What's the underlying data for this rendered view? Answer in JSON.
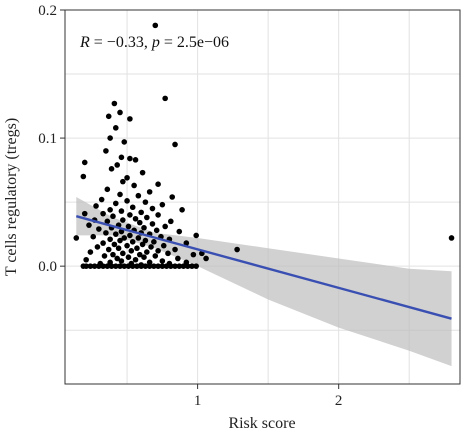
{
  "chart_data": {
    "type": "scatter",
    "title": "",
    "xlabel": "Risk score",
    "ylabel": "T cells regulatory (tregs)",
    "xlim": [
      0.06,
      2.86
    ],
    "ylim": [
      -0.092,
      0.2
    ],
    "x_ticks": [
      1,
      2
    ],
    "x_tick_labels": [
      "1",
      "2"
    ],
    "y_ticks": [
      0.0,
      0.1,
      0.2
    ],
    "y_tick_labels": [
      "0.0",
      "0.1",
      "0.2"
    ],
    "grid": true,
    "annotation": {
      "r_label": "R",
      "r_text": " = −0.33, ",
      "p_label": "p",
      "p_text": " = 2.5e−06"
    },
    "colors": {
      "points": "#000000",
      "fit_line": "#3a4fb2",
      "ci_band": "#bdbdbd",
      "grid": "#e2e2e2",
      "axis": "#333333"
    },
    "fit": {
      "x": [
        0.14,
        2.8
      ],
      "y": [
        0.039,
        -0.041
      ],
      "ci_x": [
        0.14,
        0.4,
        0.7,
        1.0,
        1.5,
        2.0,
        2.5,
        2.8
      ],
      "ci_lower": [
        0.024,
        0.024,
        0.014,
        0.0,
        -0.026,
        -0.048,
        -0.066,
        -0.078
      ],
      "ci_upper": [
        0.054,
        0.038,
        0.026,
        0.022,
        0.014,
        0.006,
        -0.002,
        -0.004
      ]
    },
    "points": [
      [
        0.7,
        0.188
      ],
      [
        0.77,
        0.131
      ],
      [
        0.41,
        0.127
      ],
      [
        0.45,
        0.12
      ],
      [
        0.37,
        0.117
      ],
      [
        0.52,
        0.115
      ],
      [
        0.42,
        0.108
      ],
      [
        0.38,
        0.1
      ],
      [
        0.48,
        0.097
      ],
      [
        0.84,
        0.095
      ],
      [
        0.35,
        0.09
      ],
      [
        0.46,
        0.085
      ],
      [
        0.52,
        0.084
      ],
      [
        0.56,
        0.083
      ],
      [
        0.2,
        0.081
      ],
      [
        0.43,
        0.079
      ],
      [
        0.39,
        0.076
      ],
      [
        0.61,
        0.073
      ],
      [
        0.19,
        0.07
      ],
      [
        0.5,
        0.069
      ],
      [
        0.47,
        0.066
      ],
      [
        0.72,
        0.064
      ],
      [
        0.55,
        0.063
      ],
      [
        0.36,
        0.06
      ],
      [
        0.66,
        0.058
      ],
      [
        0.45,
        0.056
      ],
      [
        0.58,
        0.055
      ],
      [
        0.82,
        0.054
      ],
      [
        0.32,
        0.052
      ],
      [
        0.5,
        0.051
      ],
      [
        0.63,
        0.05
      ],
      [
        0.42,
        0.049
      ],
      [
        0.75,
        0.048
      ],
      [
        0.28,
        0.047
      ],
      [
        0.54,
        0.046
      ],
      [
        0.68,
        0.045
      ],
      [
        0.38,
        0.044
      ],
      [
        0.89,
        0.044
      ],
      [
        0.46,
        0.043
      ],
      [
        0.6,
        0.042
      ],
      [
        0.2,
        0.041
      ],
      [
        0.33,
        0.041
      ],
      [
        0.52,
        0.04
      ],
      [
        0.72,
        0.04
      ],
      [
        0.4,
        0.039
      ],
      [
        0.64,
        0.038
      ],
      [
        0.56,
        0.037
      ],
      [
        0.27,
        0.036
      ],
      [
        0.47,
        0.036
      ],
      [
        0.81,
        0.035
      ],
      [
        0.36,
        0.035
      ],
      [
        0.59,
        0.034
      ],
      [
        0.68,
        0.033
      ],
      [
        0.44,
        0.032
      ],
      [
        0.23,
        0.032
      ],
      [
        0.51,
        0.031
      ],
      [
        0.77,
        0.031
      ],
      [
        0.39,
        0.03
      ],
      [
        0.62,
        0.03
      ],
      [
        0.3,
        0.029
      ],
      [
        0.55,
        0.028
      ],
      [
        0.71,
        0.028
      ],
      [
        0.46,
        0.027
      ],
      [
        0.87,
        0.027
      ],
      [
        0.35,
        0.026
      ],
      [
        0.6,
        0.026
      ],
      [
        0.42,
        0.025
      ],
      [
        0.66,
        0.025
      ],
      [
        0.52,
        0.024
      ],
      [
        0.99,
        0.024
      ],
      [
        0.26,
        0.023
      ],
      [
        0.74,
        0.023
      ],
      [
        0.48,
        0.022
      ],
      [
        0.58,
        0.022
      ],
      [
        0.14,
        0.022
      ],
      [
        0.38,
        0.021
      ],
      [
        0.8,
        0.021
      ],
      [
        0.63,
        0.02
      ],
      [
        0.45,
        0.02
      ],
      [
        0.69,
        0.019
      ],
      [
        0.54,
        0.019
      ],
      [
        0.33,
        0.018
      ],
      [
        0.92,
        0.018
      ],
      [
        0.41,
        0.017
      ],
      [
        0.61,
        0.017
      ],
      [
        0.76,
        0.016
      ],
      [
        0.5,
        0.016
      ],
      [
        0.29,
        0.015
      ],
      [
        0.67,
        0.015
      ],
      [
        0.44,
        0.014
      ],
      [
        0.57,
        0.014
      ],
      [
        0.84,
        0.013
      ],
      [
        0.37,
        0.013
      ],
      [
        0.72,
        0.012
      ],
      [
        0.53,
        0.012
      ],
      [
        1.28,
        0.013
      ],
      [
        0.24,
        0.011
      ],
      [
        0.64,
        0.011
      ],
      [
        0.47,
        0.01
      ],
      [
        0.79,
        0.01
      ],
      [
        0.4,
        0.009
      ],
      [
        0.59,
        0.009
      ],
      [
        0.97,
        0.009
      ],
      [
        0.34,
        0.008
      ],
      [
        0.7,
        0.008
      ],
      [
        0.51,
        0.007
      ],
      [
        0.62,
        0.007
      ],
      [
        0.43,
        0.006
      ],
      [
        0.86,
        0.006
      ],
      [
        1.03,
        0.01
      ],
      [
        0.21,
        0.005
      ],
      [
        0.56,
        0.005
      ],
      [
        0.75,
        0.004
      ],
      [
        0.46,
        0.004
      ],
      [
        0.66,
        0.003
      ],
      [
        0.38,
        0.003
      ],
      [
        0.92,
        0.003
      ],
      [
        0.53,
        0.002
      ],
      [
        0.31,
        0.002
      ],
      [
        0.8,
        0.002
      ],
      [
        0.6,
        0.001
      ],
      [
        1.06,
        0.006
      ],
      [
        2.8,
        0.022
      ],
      [
        0.19,
        0.0
      ],
      [
        0.21,
        0.0
      ],
      [
        0.24,
        0.0
      ],
      [
        0.27,
        0.0
      ],
      [
        0.3,
        0.0
      ],
      [
        0.33,
        0.0
      ],
      [
        0.36,
        0.0
      ],
      [
        0.39,
        0.0
      ],
      [
        0.42,
        0.0
      ],
      [
        0.45,
        0.0
      ],
      [
        0.48,
        0.0
      ],
      [
        0.51,
        0.0
      ],
      [
        0.54,
        0.0
      ],
      [
        0.57,
        0.0
      ],
      [
        0.6,
        0.0
      ],
      [
        0.63,
        0.0
      ],
      [
        0.66,
        0.0
      ],
      [
        0.69,
        0.0
      ],
      [
        0.72,
        0.0
      ],
      [
        0.75,
        0.0
      ],
      [
        0.78,
        0.0
      ],
      [
        0.81,
        0.0
      ],
      [
        0.84,
        0.0
      ],
      [
        0.87,
        0.0
      ],
      [
        0.9,
        0.0
      ],
      [
        0.93,
        0.0
      ],
      [
        0.96,
        0.0
      ],
      [
        0.99,
        0.0
      ]
    ]
  }
}
